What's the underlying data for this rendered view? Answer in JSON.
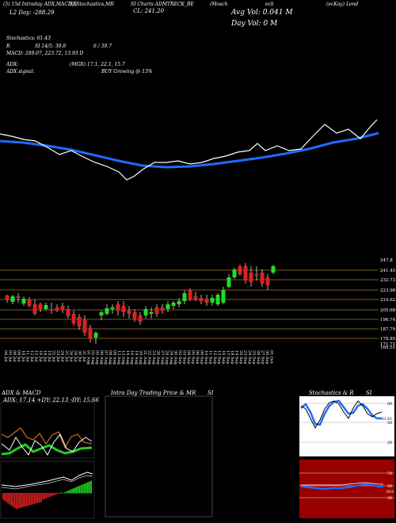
{
  "header": {
    "row1": [
      "(5) 15d Intraday ADX,MACD,R",
      "SI,Stochastics,MR",
      "SI Charts ADMTRECK_BE",
      "(Mosch",
      "ech",
      "(ecKay) Lond"
    ],
    "price_line": "CL: 241.20",
    "range_line": "L2 Day: -288.29",
    "avg_vol": "Avg Vol: 0.041 M",
    "day_vol": "Day Vol: 0   M"
  },
  "stats": {
    "stochastics": "Stochastics: 61.43",
    "rsi_left": "R",
    "rsi_mid": "SI 14/5: 39.8",
    "rsi_right": "6 / 39.7",
    "macd": "MACD: 289.07,  223.72,  13.93 D",
    "adx": "ADX:",
    "adx_vals": "(MGR) 17.1,  22.1,  15.7",
    "adx_signal_label": "ADX  signal:",
    "adx_signal_value": "BUY Growing @ 13%"
  },
  "price_axis": [
    "247.8",
    "241.45",
    "232.73",
    "223.98",
    "214.62",
    "205.68",
    "196.74",
    "187.79",
    "178.85",
    "171.71",
    "169.51"
  ],
  "dates": [
    "04 Jul",
    "05 Jul",
    "08 Jul",
    "09 Jul",
    "10 Jul",
    "11 Jul",
    "12 Jul",
    "15 Jul",
    "16 Jul",
    "18 Jul",
    "19 Jul",
    "22 Jul",
    "23 Jul",
    "24 Jul",
    "25 Jul",
    "26 Jul",
    "29 Jul",
    "30 Jul",
    "31 Jul",
    "01 Aug",
    "02 Aug",
    "05 Aug",
    "06 Aug",
    "07 Aug",
    "08 Aug",
    "09 Aug",
    "12 Aug",
    "13 Aug",
    "14 Aug",
    "16 Aug",
    "19 Aug",
    "20 Aug",
    "21 Aug",
    "22 Aug",
    "23 Aug",
    "26 Aug",
    "27 Aug",
    "28 Aug",
    "29 Aug",
    "30 Aug",
    "02 Sep",
    "03 Sep",
    "04 Sep",
    "05 Sep",
    "06 Sep",
    "09 Sep",
    "10 Sep",
    "11 Sep",
    "12 Sep",
    "13 Sep",
    "16 Sep",
    "17 Sep",
    "18 Sep",
    "19 Sep",
    "20 Sep",
    "23 Sep",
    "24 Sep",
    "25 Sep",
    "26 Sep",
    "27 Sep",
    "30 Sep",
    "01 Oct",
    "03 Oct"
  ],
  "panels": {
    "adx_title": "ADX  & MACD",
    "adx_values": "ADX: 17.14   +DY: 22.13  -DY: 15.66",
    "center_title": "Intra  Day Trading Price  & MR",
    "center_title_right": "SI",
    "stoch_title": "Stochastics & R",
    "stoch_title_right": "SI",
    "stoch_levels": [
      "80",
      "50",
      "20"
    ],
    "stoch_value": "61.43",
    "rsi_levels": [
      "70",
      "50",
      "30"
    ],
    "rsi_value": "39.8"
  },
  "colors": {
    "ma_line": "#1e6bff",
    "up_candle": "#22dd22",
    "down_candle": "#dd2222",
    "grid_gold": "#a07a20",
    "macd_green": "#22dd22",
    "macd_red": "#dd2222",
    "rsi_panel_bg": "#990000",
    "stoch_panel_bg": "#fff"
  },
  "chart_data": {
    "type": "candlestick",
    "y_axis_ticks": [
      247.8,
      241.45,
      232.73,
      223.98,
      214.62,
      205.68,
      196.74,
      187.79,
      178.85,
      171.71,
      169.51
    ]
  }
}
